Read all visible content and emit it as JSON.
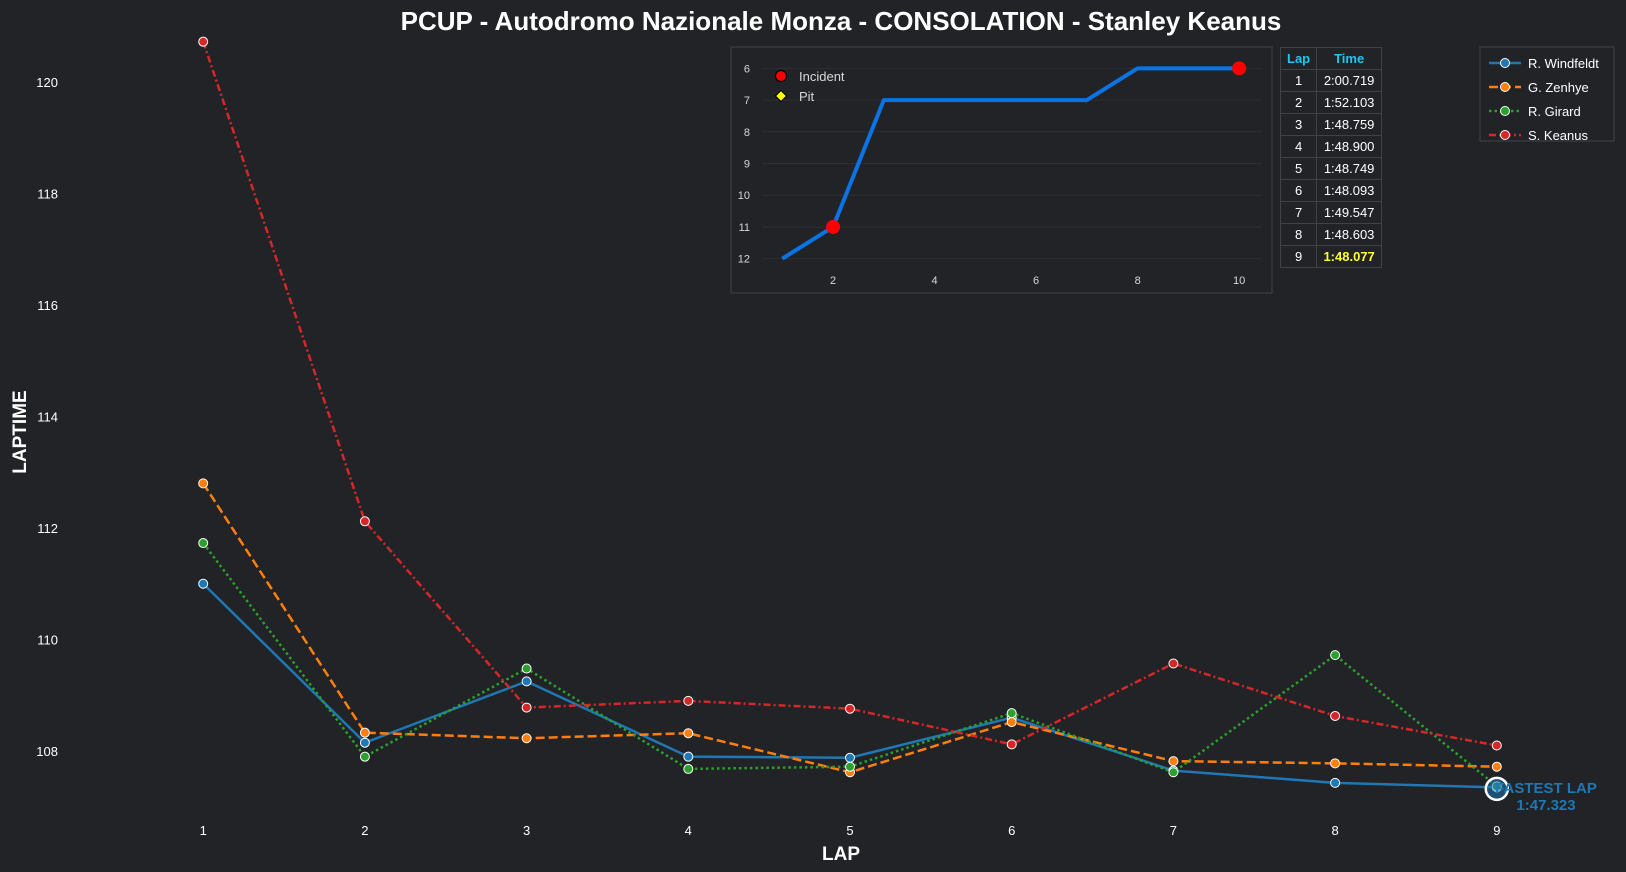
{
  "chart_data": {
    "type": "line",
    "title": "PCUP - Autodromo Nazionale Monza - CONSOLATION - Stanley Keanus",
    "xlabel": "LAP",
    "ylabel": "LAPTIME",
    "x": [
      1,
      2,
      3,
      4,
      5,
      6,
      7,
      8,
      9
    ],
    "xlim": [
      0.3,
      9.7
    ],
    "ylim": [
      106.8,
      120.75
    ],
    "yticks": [
      108,
      110,
      112,
      114,
      116,
      118,
      120
    ],
    "grid": false,
    "legend_position": "top-right",
    "series": [
      {
        "name": "R. Windfeldt",
        "color": "#1f77b4",
        "style": "solid",
        "values": [
          111.0,
          108.15,
          109.25,
          107.9,
          107.88,
          108.6,
          107.65,
          107.43,
          107.35
        ]
      },
      {
        "name": "G. Zenhye",
        "color": "#ff7f0e",
        "style": "dashed",
        "values": [
          112.8,
          108.33,
          108.23,
          108.32,
          107.62,
          108.52,
          107.82,
          107.78,
          107.72
        ]
      },
      {
        "name": "R. Girard",
        "color": "#2ca02c",
        "style": "dotted",
        "values": [
          111.73,
          107.9,
          109.48,
          107.68,
          107.72,
          108.68,
          107.62,
          109.72,
          107.37
        ]
      },
      {
        "name": "S. Keanus",
        "color": "#d62728",
        "style": "dashdot",
        "values": [
          120.72,
          112.12,
          108.78,
          108.9,
          108.76,
          108.12,
          109.57,
          108.63,
          108.1
        ]
      }
    ],
    "fastest_lap": {
      "lap": 9,
      "value": 107.323,
      "label": "FASTEST LAP",
      "time": "1:47.323",
      "color": "#1f77b4"
    },
    "inset": {
      "type": "line",
      "x": [
        1,
        2,
        3,
        4,
        5,
        6,
        7,
        8,
        9,
        10
      ],
      "values": [
        12,
        11,
        7,
        7,
        7,
        7,
        7,
        6,
        6,
        6
      ],
      "xticks": [
        2,
        4,
        6,
        8,
        10
      ],
      "yticks": [
        6,
        7,
        8,
        9,
        10,
        11,
        12
      ],
      "xlim": [
        0.6,
        10.45
      ],
      "ylim": [
        5.8,
        12.2
      ],
      "inverted_y": true,
      "color": "#0a74e4",
      "incidents": [
        2,
        10
      ],
      "pits": [],
      "legend": [
        {
          "label": "Incident",
          "marker": "circle",
          "color": "#ff0000"
        },
        {
          "label": "Pit",
          "marker": "diamond",
          "color": "#ffff00"
        }
      ]
    },
    "lap_table": {
      "headers": [
        "Lap",
        "Time"
      ],
      "rows": [
        {
          "lap": "1",
          "time": "2:00.719"
        },
        {
          "lap": "2",
          "time": "1:52.103"
        },
        {
          "lap": "3",
          "time": "1:48.759"
        },
        {
          "lap": "4",
          "time": "1:48.900"
        },
        {
          "lap": "5",
          "time": "1:48.749"
        },
        {
          "lap": "6",
          "time": "1:48.093"
        },
        {
          "lap": "7",
          "time": "1:49.547"
        },
        {
          "lap": "8",
          "time": "1:48.603"
        },
        {
          "lap": "9",
          "time": "1:48.077"
        }
      ],
      "best_row": 8
    }
  }
}
